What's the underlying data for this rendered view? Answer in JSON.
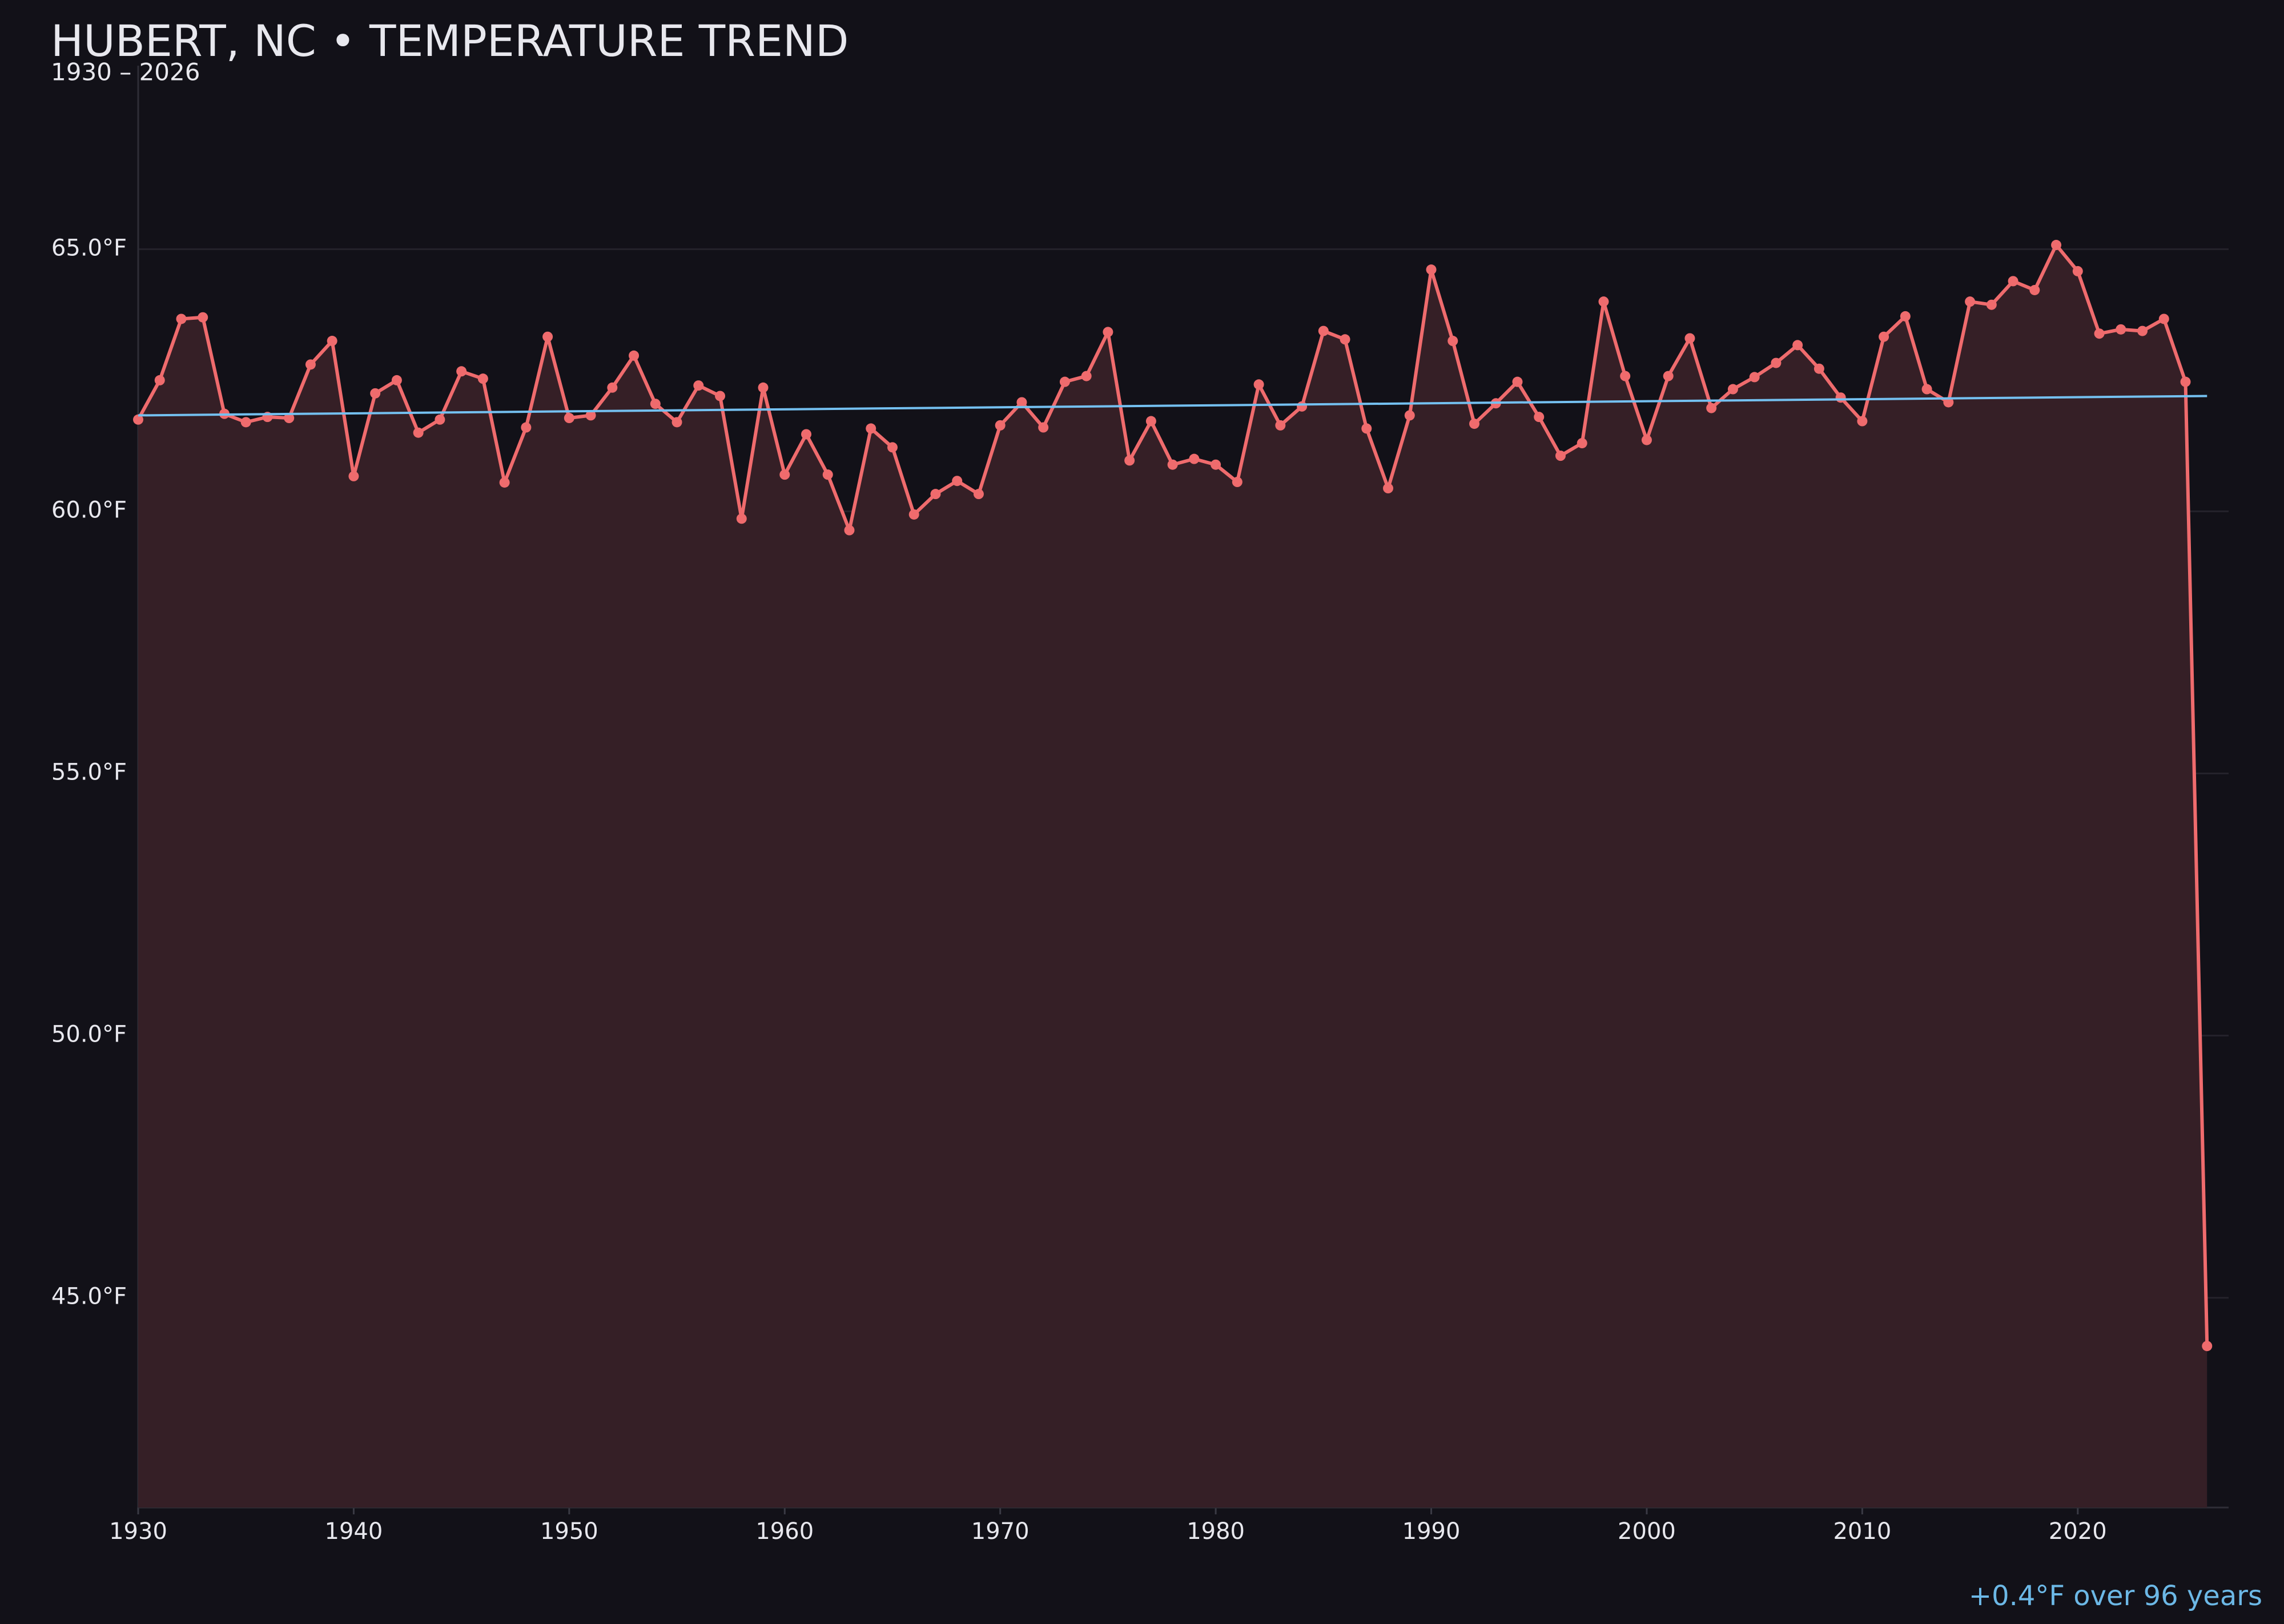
{
  "chart_data": {
    "type": "line",
    "title": "HUBERT, NC • TEMPERATURE TREND",
    "subtitle": "1930 – 2026",
    "annotation": "+0.4°F over 96 years",
    "x": [
      1930,
      1931,
      1932,
      1933,
      1934,
      1935,
      1936,
      1937,
      1938,
      1939,
      1940,
      1941,
      1942,
      1943,
      1944,
      1945,
      1946,
      1947,
      1948,
      1949,
      1950,
      1951,
      1952,
      1953,
      1954,
      1955,
      1956,
      1957,
      1958,
      1959,
      1960,
      1961,
      1962,
      1963,
      1964,
      1965,
      1966,
      1967,
      1968,
      1969,
      1970,
      1971,
      1972,
      1973,
      1974,
      1975,
      1976,
      1977,
      1978,
      1979,
      1980,
      1981,
      1982,
      1983,
      1984,
      1985,
      1986,
      1987,
      1988,
      1989,
      1990,
      1991,
      1992,
      1993,
      1994,
      1995,
      1996,
      1997,
      1998,
      1999,
      2000,
      2001,
      2002,
      2003,
      2004,
      2005,
      2006,
      2007,
      2008,
      2009,
      2010,
      2011,
      2012,
      2013,
      2014,
      2015,
      2016,
      2017,
      2018,
      2019,
      2020,
      2021,
      2022,
      2023,
      2024,
      2025,
      2026
    ],
    "series": [
      {
        "color": "#ef6b6d",
        "fill": "#351f26",
        "values": [
          61.75,
          62.5,
          63.67,
          63.7,
          61.86,
          61.7,
          61.8,
          61.78,
          62.8,
          63.25,
          60.67,
          62.25,
          62.5,
          61.5,
          61.75,
          62.67,
          62.53,
          60.55,
          61.6,
          63.33,
          61.78,
          61.83,
          62.36,
          62.97,
          62.05,
          61.7,
          62.4,
          62.2,
          59.86,
          62.36,
          60.7,
          61.47,
          60.7,
          59.64,
          61.58,
          61.22,
          59.94,
          60.33,
          60.58,
          60.33,
          61.64,
          62.08,
          61.6,
          62.47,
          62.58,
          63.42,
          60.97,
          61.72,
          60.89,
          61.0,
          60.89,
          60.56,
          62.42,
          61.64,
          62.0,
          63.44,
          63.28,
          61.58,
          60.44,
          61.83,
          64.61,
          63.25,
          61.67,
          62.06,
          62.47,
          61.8,
          61.06,
          61.3,
          64.0,
          62.58,
          61.36,
          62.58,
          63.3,
          61.97,
          62.33,
          62.56,
          62.83,
          63.17,
          62.72,
          62.17,
          61.72,
          63.33,
          63.72,
          62.33,
          62.08,
          64.0,
          63.94,
          64.39,
          64.22,
          65.08,
          64.58,
          63.39,
          63.47,
          63.44,
          63.67,
          62.47,
          44.08
        ]
      }
    ],
    "trend": {
      "color": "#74c0f0",
      "x": [
        1930,
        2026
      ],
      "values": [
        61.83,
        62.2
      ]
    },
    "xlim": [
      1930,
      2027
    ],
    "xticks": [
      1930,
      1940,
      1950,
      1960,
      1970,
      1980,
      1990,
      2000,
      2010,
      2020
    ],
    "ylim": [
      41,
      68.5
    ],
    "yticks": [
      {
        "value": 45,
        "label": "45.0°F"
      },
      {
        "value": 50,
        "label": "50.0°F"
      },
      {
        "value": 55,
        "label": "55.0°F"
      },
      {
        "value": 60,
        "label": "60.0°F"
      },
      {
        "value": 65,
        "label": "65.0°F"
      }
    ],
    "grid": true
  }
}
